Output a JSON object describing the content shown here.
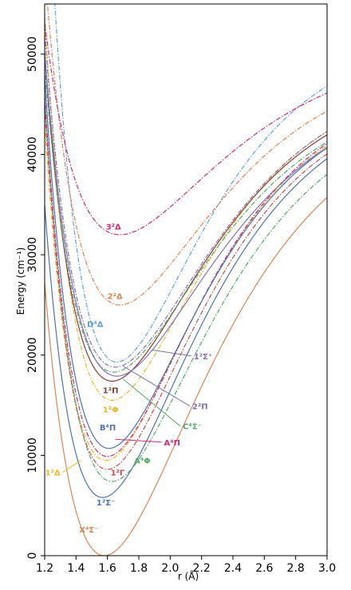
{
  "chart_data": {
    "type": "line",
    "title": "",
    "xlabel": "r (Å)",
    "ylabel": "Energy (cm⁻¹)",
    "xlim": [
      1.2,
      3.0
    ],
    "ylim": [
      0,
      55000
    ],
    "xticks": [
      "1.2",
      "1.4",
      "1.6",
      "1.8",
      "2.0",
      "2.2",
      "2.4",
      "2.6",
      "2.8",
      "3.0"
    ],
    "yticks": [
      "0",
      "10000",
      "20000",
      "30000",
      "40000",
      "50000"
    ],
    "grid": false,
    "legend": "none",
    "series": [
      {
        "name": "X⁴Σ⁻",
        "color": "#dd8452",
        "dash": "solid",
        "re": 1.58,
        "Te": 0,
        "asymptote": 46000,
        "a": 1.5,
        "label_at": [
          1.42,
          2300
        ],
        "arrow_to": null
      },
      {
        "name": "1²Σ⁻",
        "color": "#4c72b0",
        "dash": "solid",
        "re": 1.57,
        "Te": 5800,
        "asymptote": 47000,
        "a": 1.65,
        "label_at": [
          1.53,
          5000
        ],
        "arrow_to": null
      },
      {
        "name": "1²Δ",
        "color": "#e8b828",
        "dash": "dashdot",
        "re": 1.59,
        "Te": 9500,
        "asymptote": 47500,
        "a": 1.7,
        "label_at": [
          1.3,
          8000
        ],
        "arrow_to": [
          1.43,
          9500
        ]
      },
      {
        "name": "1²Γ",
        "color": "#c44e52",
        "dash": "dashdot",
        "re": 1.6,
        "Te": 8600,
        "asymptote": 46800,
        "a": 1.7,
        "label_at": [
          1.62,
          8000
        ],
        "arrow_to": null
      },
      {
        "name": "A⁴Φ",
        "color": "#55a868",
        "dash": "dashdot",
        "re": 1.63,
        "Te": 7400,
        "asymptote": 46200,
        "a": 1.6,
        "label_at": [
          1.77,
          9200
        ],
        "arrow_to": null
      },
      {
        "name": "A⁴Π",
        "color": "#c82d77",
        "dash": "dashdot",
        "re": 1.6,
        "Te": 9900,
        "asymptote": 47800,
        "a": 1.7,
        "label_at": [
          1.96,
          11000
        ],
        "arrow_to": [
          1.65,
          11600
        ]
      },
      {
        "name": "B⁴Π",
        "color": "#4c72b0",
        "dash": "solid",
        "re": 1.61,
        "Te": 10700,
        "asymptote": 47200,
        "a": 1.7,
        "label_at": [
          1.55,
          12500
        ],
        "arrow_to": null
      },
      {
        "name": "1²Φ",
        "color": "#e8b828",
        "dash": "dashdot",
        "re": 1.63,
        "Te": 15500,
        "asymptote": 48400,
        "a": 1.7,
        "label_at": [
          1.57,
          14300
        ],
        "arrow_to": null
      },
      {
        "name": "1²Π",
        "color": "#8b3a2f",
        "dash": "solid",
        "re": 1.63,
        "Te": 17400,
        "asymptote": 48000,
        "a": 1.65,
        "label_at": [
          1.57,
          16200
        ],
        "arrow_to": null
      },
      {
        "name": "C⁴Σ⁻",
        "color": "#55a868",
        "dash": "dashdot",
        "re": 1.64,
        "Te": 18300,
        "asymptote": 47500,
        "a": 1.6,
        "label_at": [
          2.08,
          12600
        ],
        "arrow_to": [
          1.7,
          17600
        ]
      },
      {
        "name": "2²Π",
        "color": "#8172b3",
        "dash": "dashdot",
        "re": 1.65,
        "Te": 18800,
        "asymptote": 48800,
        "a": 1.6,
        "label_at": [
          2.14,
          14600
        ],
        "arrow_to": [
          1.7,
          18900
        ]
      },
      {
        "name": "1²Σ⁺",
        "color": "#8172b3",
        "dash": "solid",
        "re": 1.66,
        "Te": 17900,
        "asymptote": 47700,
        "a": 1.55,
        "label_at": [
          2.15,
          19600
        ],
        "arrow_to": [
          1.89,
          20500
        ]
      },
      {
        "name": "D⁴Δ",
        "color": "#5fa2d9",
        "dash": "dashdot",
        "re": 1.66,
        "Te": 19300,
        "asymptote": 52500,
        "a": 1.8,
        "label_at": [
          1.47,
          22800
        ],
        "arrow_to": null
      },
      {
        "name": "2²Δ",
        "color": "#dd8452",
        "dash": "dashdot",
        "re": 1.68,
        "Te": 25000,
        "asymptote": 50000,
        "a": 1.6,
        "label_at": [
          1.6,
          25600
        ],
        "arrow_to": null
      },
      {
        "name": "3²Δ",
        "color": "#c82d77",
        "dash": "dashdot",
        "re": 1.68,
        "Te": 32000,
        "asymptote": 51000,
        "a": 1.5,
        "label_at": [
          1.59,
          32500
        ],
        "arrow_to": null
      }
    ]
  }
}
